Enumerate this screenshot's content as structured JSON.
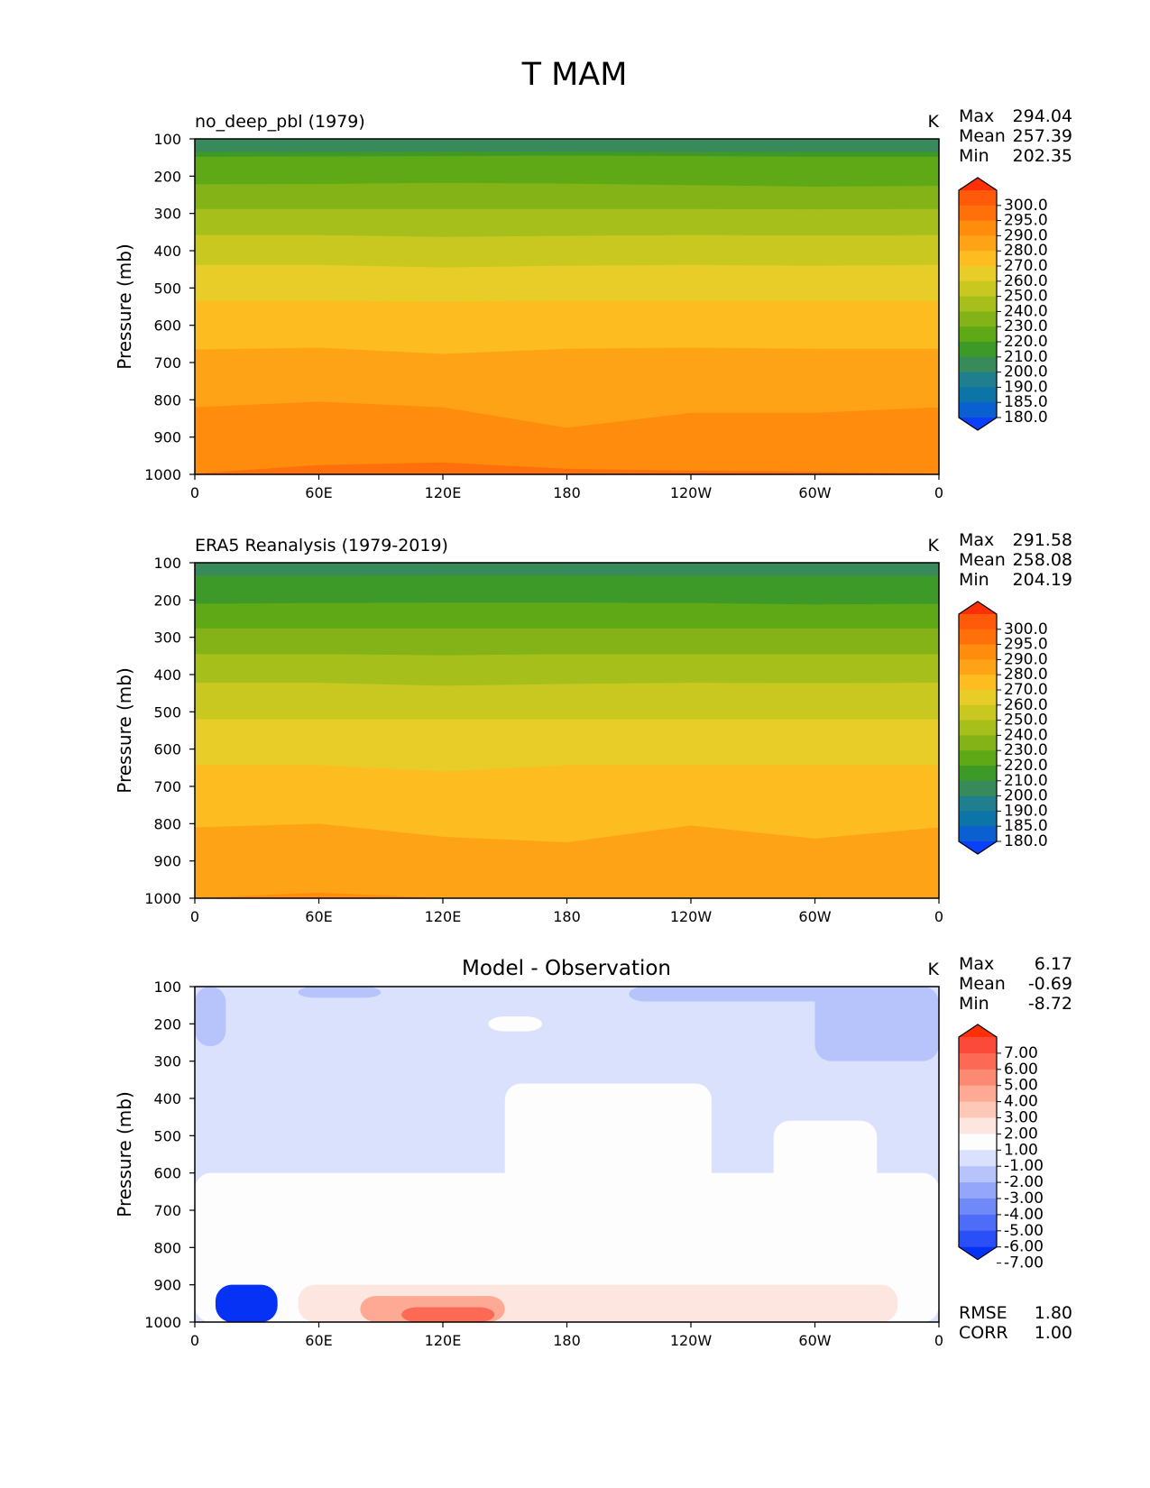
{
  "figure_title": "T MAM",
  "x_ticks": [
    "0",
    "60E",
    "120E",
    "180",
    "120W",
    "60W",
    "0"
  ],
  "y_ticks": [
    "100",
    "200",
    "300",
    "400",
    "500",
    "600",
    "700",
    "800",
    "900",
    "1000"
  ],
  "y_label": "Pressure (mb)",
  "stat_labels": {
    "max": "Max",
    "mean": "Mean",
    "min": "Min",
    "rmse": "RMSE",
    "corr": "CORR"
  },
  "panels": [
    {
      "title": "no_deep_pbl (1979)",
      "units": "K",
      "stats": {
        "max": "294.04",
        "mean": "257.39",
        "min": "202.35"
      }
    },
    {
      "title": "ERA5 Reanalysis (1979-2019)",
      "units": "K",
      "stats": {
        "max": "291.58",
        "mean": "258.08",
        "min": "204.19"
      }
    },
    {
      "title": "Model - Observation",
      "units": "K",
      "stats": {
        "max": "6.17",
        "mean": "-0.69",
        "min": "-8.72",
        "rmse": "1.80",
        "corr": "1.00"
      }
    }
  ],
  "colorbars": {
    "temperature": {
      "labels": [
        "300.0",
        "295.0",
        "290.0",
        "280.0",
        "270.0",
        "260.0",
        "250.0",
        "240.0",
        "230.0",
        "220.0",
        "210.0",
        "200.0",
        "190.0",
        "185.0",
        "180.0"
      ],
      "colors": [
        "#ff3007",
        "#ff5a0a",
        "#ff700b",
        "#ff8c0d",
        "#ffa316",
        "#fdbc20",
        "#e8cc28",
        "#c8c821",
        "#a6bf1a",
        "#84b317",
        "#5fa816",
        "#3e9a28",
        "#398a5a",
        "#1f7f8e",
        "#0d74a8",
        "#0a5fd1",
        "#0b3ffe"
      ]
    },
    "difference": {
      "labels": [
        "7.00",
        "6.00",
        "5.00",
        "4.00",
        "3.00",
        "2.00",
        "1.00",
        "-1.00",
        "-2.00",
        "-3.00",
        "-4.00",
        "-5.00",
        "-6.00",
        "-7.00"
      ],
      "colors": [
        "#ff3006",
        "#fb4a3a",
        "#fc6a55",
        "#fc8a73",
        "#fda993",
        "#fdc8b8",
        "#fde6df",
        "#fdfdfd",
        "#dae1fc",
        "#b6c4fb",
        "#93a6fa",
        "#7089f8",
        "#4d6cf7",
        "#2a4ff6",
        "#0632f5"
      ]
    }
  },
  "chart_data": [
    {
      "type": "heatmap",
      "title": "no_deep_pbl (1979)",
      "x": [
        0,
        60,
        120,
        180,
        240,
        300,
        360
      ],
      "xtick_labels": [
        "0",
        "60E",
        "120E",
        "180",
        "120W",
        "60W",
        "0"
      ],
      "xlim": [
        0,
        360
      ],
      "ylabel": "Pressure (mb)",
      "ylim": [
        1000,
        100
      ],
      "levels_bounds": [
        180,
        185,
        190,
        200,
        210,
        220,
        230,
        240,
        250,
        260,
        270,
        280,
        290,
        295,
        300
      ],
      "iso_boundaries": [
        {
          "lo": 200,
          "hi": 210,
          "p": [
            135,
            135,
            134,
            134,
            135,
            135,
            135
          ]
        },
        {
          "lo": 210,
          "hi": 220,
          "p": [
            148,
            147,
            146,
            145,
            146,
            148,
            148
          ]
        },
        {
          "lo": 220,
          "hi": 230,
          "p": [
            222,
            221,
            218,
            220,
            224,
            228,
            226
          ]
        },
        {
          "lo": 230,
          "hi": 240,
          "p": [
            288,
            288,
            288,
            288,
            288,
            289,
            288
          ]
        },
        {
          "lo": 240,
          "hi": 250,
          "p": [
            358,
            358,
            363,
            360,
            358,
            359,
            358
          ]
        },
        {
          "lo": 250,
          "hi": 260,
          "p": [
            438,
            438,
            445,
            440,
            438,
            440,
            438
          ]
        },
        {
          "lo": 260,
          "hi": 270,
          "p": [
            535,
            535,
            536,
            535,
            535,
            535,
            535
          ]
        },
        {
          "lo": 270,
          "hi": 280,
          "p": [
            665,
            660,
            677,
            663,
            660,
            663,
            663
          ]
        },
        {
          "lo": 280,
          "hi": 290,
          "p": [
            820,
            805,
            820,
            875,
            835,
            835,
            820
          ]
        },
        {
          "lo": 290,
          "hi": 295,
          "p": [
            998,
            975,
            968,
            985,
            990,
            993,
            998
          ]
        }
      ],
      "max": 294.04,
      "mean": 257.39,
      "min": 202.35,
      "units": "K"
    },
    {
      "type": "heatmap",
      "title": "ERA5 Reanalysis (1979-2019)",
      "x": [
        0,
        60,
        120,
        180,
        240,
        300,
        360
      ],
      "xtick_labels": [
        "0",
        "60E",
        "120E",
        "180",
        "120W",
        "60W",
        "0"
      ],
      "xlim": [
        0,
        360
      ],
      "ylabel": "Pressure (mb)",
      "ylim": [
        1000,
        100
      ],
      "levels_bounds": [
        180,
        185,
        190,
        200,
        210,
        220,
        230,
        240,
        250,
        260,
        270,
        280,
        290,
        295,
        300
      ],
      "iso_boundaries": [
        {
          "lo": 200,
          "hi": 210,
          "p": [
            135,
            135,
            134,
            134,
            135,
            135,
            135
          ]
        },
        {
          "lo": 210,
          "hi": 220,
          "p": [
            210,
            208,
            207,
            207,
            208,
            212,
            210
          ]
        },
        {
          "lo": 220,
          "hi": 230,
          "p": [
            276,
            276,
            276,
            276,
            276,
            276,
            276
          ]
        },
        {
          "lo": 230,
          "hi": 240,
          "p": [
            345,
            345,
            348,
            345,
            345,
            345,
            345
          ]
        },
        {
          "lo": 240,
          "hi": 250,
          "p": [
            422,
            422,
            430,
            425,
            422,
            423,
            422
          ]
        },
        {
          "lo": 250,
          "hi": 260,
          "p": [
            520,
            520,
            520,
            520,
            520,
            520,
            520
          ]
        },
        {
          "lo": 260,
          "hi": 270,
          "p": [
            643,
            643,
            660,
            643,
            643,
            643,
            643
          ]
        },
        {
          "lo": 270,
          "hi": 280,
          "p": [
            810,
            800,
            835,
            850,
            805,
            840,
            810
          ]
        },
        {
          "lo": 280,
          "hi": 290,
          "p": [
            1000,
            985,
            1000,
            1000,
            1000,
            1000,
            1000
          ]
        }
      ],
      "max": 291.58,
      "mean": 258.08,
      "min": 204.19,
      "units": "K"
    },
    {
      "type": "heatmap",
      "title": "Model - Observation",
      "x": [
        0,
        60,
        120,
        180,
        240,
        300,
        360
      ],
      "xtick_labels": [
        "0",
        "60E",
        "120E",
        "180",
        "120W",
        "60W",
        "0"
      ],
      "xlim": [
        0,
        360
      ],
      "ylabel": "Pressure (mb)",
      "ylim": [
        1000,
        100
      ],
      "levels_bounds": [
        -7,
        -6,
        -5,
        -4,
        -3,
        -2,
        -1,
        1,
        2,
        3,
        4,
        5,
        6,
        7
      ],
      "background_level": [
        -2,
        -1
      ],
      "regions": [
        {
          "level": [
            -3,
            -2
          ],
          "lon": [
            0,
            15
          ],
          "p": [
            100,
            260
          ]
        },
        {
          "level": [
            -3,
            -2
          ],
          "lon": [
            50,
            90
          ],
          "p": [
            100,
            130
          ]
        },
        {
          "level": [
            -3,
            -2
          ],
          "lon": [
            210,
            350
          ],
          "p": [
            100,
            140
          ]
        },
        {
          "level": [
            -3,
            -2
          ],
          "lon": [
            300,
            360
          ],
          "p": [
            100,
            300
          ]
        },
        {
          "level": [
            -1,
            1
          ],
          "lon": [
            142,
            168
          ],
          "p": [
            180,
            220
          ]
        },
        {
          "level": [
            -1,
            1
          ],
          "lon": [
            0,
            360
          ],
          "p": [
            600,
            1000
          ]
        },
        {
          "level": [
            -1,
            1
          ],
          "lon": [
            150,
            250
          ],
          "p": [
            360,
            800
          ]
        },
        {
          "level": [
            -1,
            1
          ],
          "lon": [
            280,
            330
          ],
          "p": [
            460,
            800
          ]
        },
        {
          "level": [
            -8,
            -7
          ],
          "lon": [
            10,
            40
          ],
          "p": [
            900,
            1000
          ]
        },
        {
          "level": [
            1,
            2
          ],
          "lon": [
            50,
            340
          ],
          "p": [
            900,
            1000
          ]
        },
        {
          "level": [
            3,
            4
          ],
          "lon": [
            80,
            150
          ],
          "p": [
            930,
            1000
          ]
        },
        {
          "level": [
            5,
            6
          ],
          "lon": [
            100,
            145
          ],
          "p": [
            960,
            1000
          ]
        }
      ],
      "max": 6.17,
      "mean": -0.69,
      "min": -8.72,
      "rmse": 1.8,
      "corr": 1.0,
      "units": "K"
    }
  ]
}
